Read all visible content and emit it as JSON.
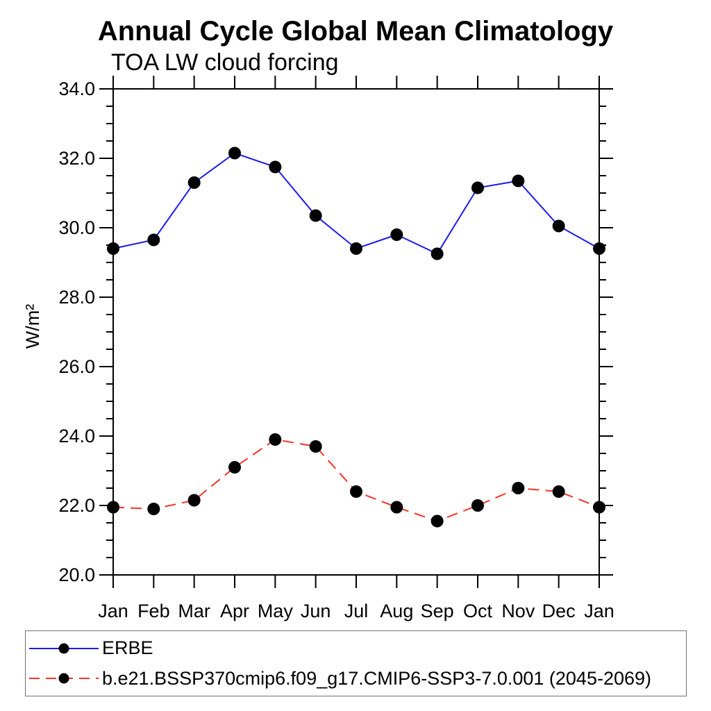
{
  "page": {
    "background_color": "#ffffff",
    "text_color": "#000000"
  },
  "chart_data": {
    "type": "line",
    "title": "Annual Cycle Global Mean Climatology",
    "subtitle": "TOA LW cloud forcing",
    "xlabel": "",
    "ylabel": "W/m²",
    "categories": [
      "Jan",
      "Feb",
      "Mar",
      "Apr",
      "May",
      "Jun",
      "Jul",
      "Aug",
      "Sep",
      "Oct",
      "Nov",
      "Dec",
      "Jan"
    ],
    "ylim": [
      20.0,
      34.0
    ],
    "ytick_step_major": 2.0,
    "ytick_step_minor": 0.5,
    "ytick_labels": [
      "20.0",
      "22.0",
      "24.0",
      "26.0",
      "28.0",
      "30.0",
      "32.0",
      "34.0"
    ],
    "grid": false,
    "legend_position": "bottom-left-box",
    "axis_color": "#000000",
    "marker_color": "#000000",
    "series": [
      {
        "name": "ERBE",
        "line_color": "#1a1aee",
        "line_style": "solid",
        "marker": "filled-circle",
        "values": [
          29.4,
          29.65,
          31.3,
          32.15,
          31.75,
          30.35,
          29.4,
          29.8,
          29.25,
          31.15,
          31.35,
          30.05,
          29.4
        ]
      },
      {
        "name": "b.e21.BSSP370cmip6.f09_g17.CMIP6-SSP3-7.0.001 (2045-2069)",
        "line_color": "#fa3228",
        "line_style": "dashed",
        "marker": "filled-circle",
        "values": [
          21.95,
          21.9,
          22.15,
          23.1,
          23.9,
          23.7,
          22.4,
          21.95,
          21.55,
          22.0,
          22.5,
          22.4,
          21.95
        ]
      }
    ]
  }
}
